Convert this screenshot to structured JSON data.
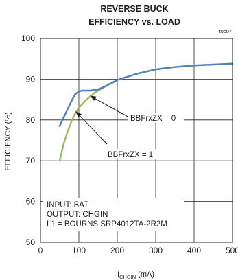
{
  "chart_data": {
    "type": "line",
    "title_line1": "REVERSE BUCK",
    "title_line2": "EFFICIENCY vs. LOAD",
    "tag": "toc07",
    "ylabel": "EFFICIENCY (%)",
    "xlabel_main": "I",
    "xlabel_sub": "CHGIN",
    "xlabel_unit": " (mA)",
    "xlim": [
      0,
      500
    ],
    "ylim": [
      50,
      100
    ],
    "x_ticks": [
      0,
      100,
      200,
      300,
      400,
      500
    ],
    "y_ticks": [
      50,
      60,
      70,
      80,
      90,
      100
    ],
    "grid": true,
    "series": [
      {
        "name": "BBFrxZX = 0",
        "color": "#4f81bd",
        "points": [
          [
            50,
            78.5
          ],
          [
            60,
            80.5
          ],
          [
            70,
            82.5
          ],
          [
            80,
            84.5
          ],
          [
            90,
            86.3
          ],
          [
            100,
            87.0
          ],
          [
            110,
            87.2
          ],
          [
            130,
            87.2
          ],
          [
            150,
            87.5
          ],
          [
            170,
            88.3
          ],
          [
            200,
            89.8
          ],
          [
            250,
            91.3
          ],
          [
            300,
            92.4
          ],
          [
            350,
            93.0
          ],
          [
            400,
            93.4
          ],
          [
            450,
            93.6
          ],
          [
            500,
            93.8
          ]
        ]
      },
      {
        "name": "BBFrxZX = 1",
        "color": "#9bbb59",
        "points": [
          [
            50,
            70.0
          ],
          [
            60,
            74.0
          ],
          [
            70,
            77.0
          ],
          [
            80,
            79.5
          ],
          [
            90,
            81.5
          ],
          [
            100,
            83.0
          ],
          [
            120,
            85.0
          ],
          [
            140,
            86.6
          ],
          [
            170,
            88.3
          ],
          [
            200,
            89.8
          ]
        ]
      }
    ],
    "annotations": {
      "label0": "BBFrxZX = 0",
      "label1": "BBFrxZX = 1",
      "info": [
        "INPUT: BAT",
        "OUTPUT: CHGIN",
        "L1 =  BOURNS SRP4012TA-2R2M"
      ]
    }
  }
}
